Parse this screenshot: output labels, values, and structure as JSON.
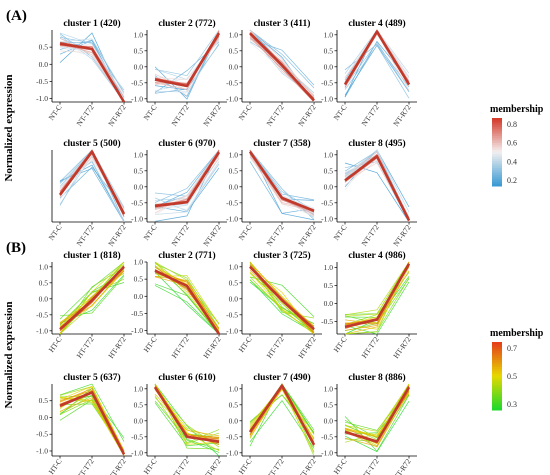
{
  "section_a": {
    "label": "(A)",
    "ylabel": "Normalized expression",
    "legend": {
      "title": "membership",
      "ticks": [
        "0.8",
        "0.6",
        "0.4",
        "0.2"
      ],
      "low_color": "#3d9bd4",
      "mid_color": "#f3f0f0",
      "high_color": "#d43c2c"
    }
  },
  "section_b": {
    "label": "(B)",
    "ylabel": "Normalized expression",
    "legend": {
      "title": "membership",
      "ticks": [
        "0.7",
        "0.5",
        "0.3"
      ],
      "low_color": "#22d82a",
      "mid_color": "#e6d800",
      "high_color": "#e5401a"
    }
  },
  "core_line_color": "#c0392b",
  "chart_data": [
    {
      "type": "line",
      "title": "cluster 1 (420)",
      "categories": [
        "NT-C",
        "NT-T72",
        "NT-R72"
      ],
      "core": [
        0.6,
        0.45,
        -1.1
      ],
      "ylim": [
        -1.1,
        1.0
      ],
      "yticks": [
        0.5,
        0.0,
        -0.5,
        -1.0
      ],
      "scheme": "A"
    },
    {
      "type": "line",
      "title": "cluster 2 (772)",
      "categories": [
        "NT-C",
        "NT-T72",
        "NT-R72"
      ],
      "core": [
        -0.4,
        -0.6,
        1.05
      ],
      "ylim": [
        -1.1,
        1.15
      ],
      "yticks": [
        1.0,
        0.5,
        0.0,
        -0.5,
        -1.0
      ],
      "scheme": "A"
    },
    {
      "type": "line",
      "title": "cluster 3 (411)",
      "categories": [
        "NT-C",
        "NT-T72",
        "NT-R72"
      ],
      "core": [
        1.05,
        0.05,
        -1.05
      ],
      "ylim": [
        -1.1,
        1.15
      ],
      "yticks": [
        1.0,
        0.5,
        0.0,
        -0.5,
        -1.0
      ],
      "scheme": "A"
    },
    {
      "type": "line",
      "title": "cluster 4 (489)",
      "categories": [
        "NT-C",
        "NT-T72",
        "NT-R72"
      ],
      "core": [
        -0.55,
        1.1,
        -0.55
      ],
      "ylim": [
        -1.1,
        1.15
      ],
      "yticks": [
        1.0,
        0.5,
        0.0,
        -0.5,
        -1.0
      ],
      "scheme": "A"
    },
    {
      "type": "line",
      "title": "cluster 5 (500)",
      "categories": [
        "NT-C",
        "NT-T72",
        "NT-R72"
      ],
      "core": [
        -0.25,
        1.1,
        -0.85
      ],
      "ylim": [
        -1.1,
        1.15
      ],
      "yticks": [],
      "scheme": "A"
    },
    {
      "type": "line",
      "title": "cluster 6 (970)",
      "categories": [
        "NT-C",
        "NT-T72",
        "NT-R72"
      ],
      "core": [
        -0.6,
        -0.48,
        1.08
      ],
      "ylim": [
        -1.1,
        1.15
      ],
      "yticks": [
        1.0,
        0.5,
        0.0,
        -0.5,
        -1.0
      ],
      "scheme": "A"
    },
    {
      "type": "line",
      "title": "cluster 7 (358)",
      "categories": [
        "NT-C",
        "NT-T72",
        "NT-R72"
      ],
      "core": [
        1.1,
        -0.35,
        -0.75
      ],
      "ylim": [
        -1.1,
        1.15
      ],
      "yticks": [
        1.0,
        0.5,
        0.0,
        -0.5,
        -1.0
      ],
      "scheme": "A"
    },
    {
      "type": "line",
      "title": "cluster 8 (495)",
      "categories": [
        "NT-C",
        "NT-T72",
        "NT-R72"
      ],
      "core": [
        0.2,
        0.95,
        -1.05
      ],
      "ylim": [
        -1.1,
        1.15
      ],
      "yticks": [
        1.0,
        0.5,
        0.0,
        -0.5,
        -1.0
      ],
      "scheme": "A"
    },
    {
      "type": "line",
      "title": "cluster 1 (818)",
      "categories": [
        "HT-C",
        "HT-T72",
        "HT-R72"
      ],
      "core": [
        -0.95,
        -0.05,
        1.0
      ],
      "ylim": [
        -1.1,
        1.15
      ],
      "yticks": [
        1.0,
        0.5,
        0.0,
        -0.5,
        -1.0
      ],
      "scheme": "B"
    },
    {
      "type": "line",
      "title": "cluster 2 (771)",
      "categories": [
        "HT-C",
        "HT-T72",
        "HT-R72"
      ],
      "core": [
        0.75,
        0.3,
        -1.1
      ],
      "ylim": [
        -1.1,
        1.0
      ],
      "yticks": [
        1.0,
        0.5,
        0.0,
        -0.5,
        -1.0
      ],
      "scheme": "B"
    },
    {
      "type": "line",
      "title": "cluster 3 (725)",
      "categories": [
        "HT-C",
        "HT-T72",
        "HT-R72"
      ],
      "core": [
        1.0,
        -0.05,
        -0.95
      ],
      "ylim": [
        -1.1,
        1.15
      ],
      "yticks": [
        1.0,
        0.5,
        0.0,
        -0.5,
        -1.0
      ],
      "scheme": "B"
    },
    {
      "type": "line",
      "title": "cluster 4 (986)",
      "categories": [
        "HT-C",
        "HT-T72",
        "HT-R72"
      ],
      "core": [
        -0.65,
        -0.45,
        1.1
      ],
      "ylim": [
        -0.85,
        1.15
      ],
      "yticks": [
        1.0,
        0.5,
        0.0,
        -0.5
      ],
      "scheme": "B"
    },
    {
      "type": "line",
      "title": "cluster 5 (637)",
      "categories": [
        "HT-C",
        "HT-T72",
        "HT-R72"
      ],
      "core": [
        0.35,
        0.75,
        -1.1
      ],
      "ylim": [
        -1.15,
        1.0
      ],
      "yticks": [
        0.5,
        0.0,
        -0.5,
        -1.0
      ],
      "scheme": "B"
    },
    {
      "type": "line",
      "title": "cluster 6 (610)",
      "categories": [
        "HT-C",
        "HT-T72",
        "HT-R72"
      ],
      "core": [
        1.05,
        -0.5,
        -0.65
      ],
      "ylim": [
        -1.1,
        1.15
      ],
      "yticks": [
        1.0,
        0.5,
        0.0,
        -0.5,
        -1.0
      ],
      "scheme": "B"
    },
    {
      "type": "line",
      "title": "cluster 7 (490)",
      "categories": [
        "HT-C",
        "HT-T72",
        "HT-R72"
      ],
      "core": [
        -0.35,
        1.1,
        -0.75
      ],
      "ylim": [
        -1.1,
        1.15
      ],
      "yticks": [
        1.0,
        0.5,
        0.0,
        -0.5,
        -1.0
      ],
      "scheme": "B"
    },
    {
      "type": "line",
      "title": "cluster 8 (886)",
      "categories": [
        "HT-C",
        "HT-T72",
        "HT-R72"
      ],
      "core": [
        -0.35,
        -0.65,
        1.05
      ],
      "ylim": [
        -1.1,
        1.15
      ],
      "yticks": [
        1.0,
        0.5,
        0.0,
        -0.5,
        -1.0
      ],
      "scheme": "B"
    }
  ]
}
